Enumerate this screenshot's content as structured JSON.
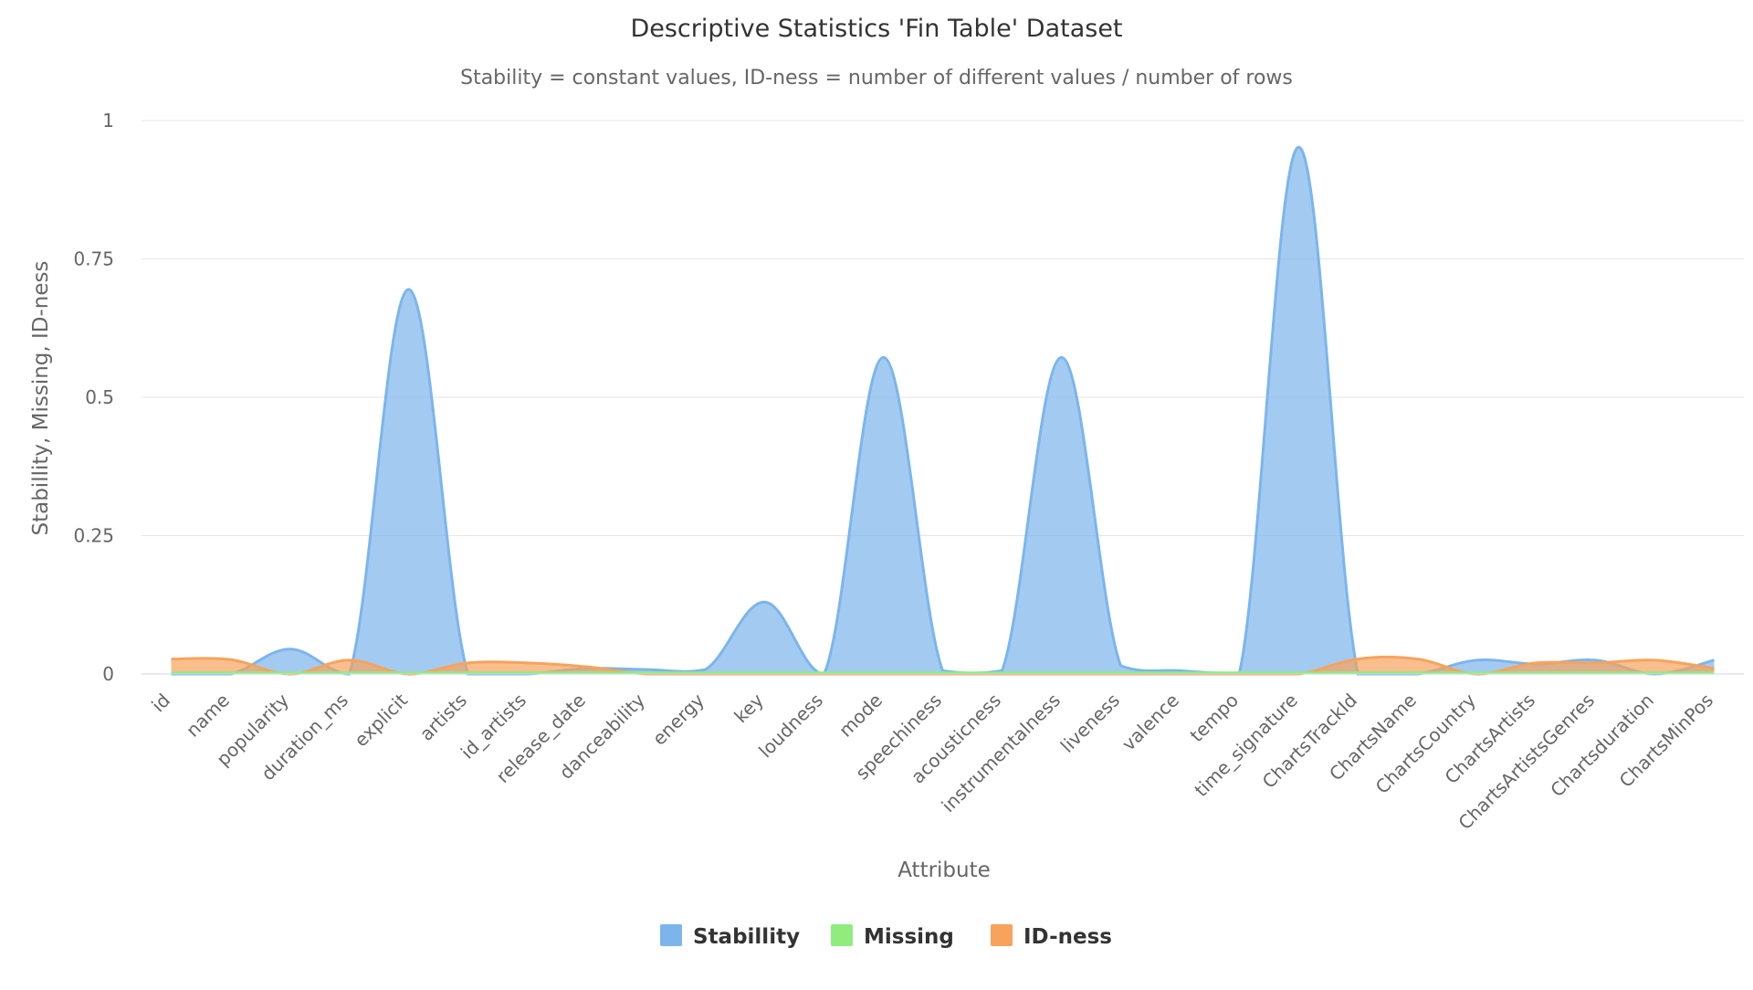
{
  "chart_data": {
    "type": "area",
    "title": "Descriptive Statistics 'Fin Table' Dataset",
    "subtitle": "Stability = constant values, ID-ness = number of different values / number of rows",
    "xlabel": "Attribute",
    "ylabel": "Stabillity, Missing, ID-ness",
    "ylim": [
      0,
      1
    ],
    "yticks": [
      0,
      0.25,
      0.5,
      0.75,
      1
    ],
    "ytick_labels": [
      "0",
      "0.25",
      "0.5",
      "0.75",
      "1"
    ],
    "grid": true,
    "legend": "bottom-center",
    "categories": [
      "id",
      "name",
      "popularity",
      "duration_ms",
      "explicit",
      "artists",
      "id_artists",
      "release_date",
      "danceability",
      "energy",
      "key",
      "loudness",
      "mode",
      "speechiness",
      "acousticness",
      "instrumentalness",
      "liveness",
      "valence",
      "tempo",
      "time_signature",
      "ChartsTrackId",
      "ChartsName",
      "ChartsCountry",
      "ChartsArtists",
      "ChartsArtistsGenres",
      "Chartsduration",
      "ChartsMinPos"
    ],
    "series": [
      {
        "name": "Stabillity",
        "color": "#7cb5ec",
        "values": [
          0.0,
          0.0,
          0.045,
          0.0,
          0.695,
          0.0,
          0.0,
          0.01,
          0.008,
          0.008,
          0.13,
          0.0,
          0.572,
          0.006,
          0.006,
          0.572,
          0.015,
          0.006,
          0.002,
          0.952,
          0.0,
          0.0,
          0.025,
          0.018,
          0.025,
          0.0,
          0.025
        ]
      },
      {
        "name": "Missing",
        "color": "#90ed7d",
        "values": [
          0.002,
          0.002,
          0.002,
          0.002,
          0.002,
          0.002,
          0.002,
          0.002,
          0.002,
          0.002,
          0.002,
          0.002,
          0.002,
          0.002,
          0.002,
          0.002,
          0.002,
          0.002,
          0.002,
          0.002,
          0.002,
          0.002,
          0.002,
          0.002,
          0.002,
          0.002,
          0.002
        ]
      },
      {
        "name": "ID-ness",
        "color": "#f7a35c",
        "values": [
          0.027,
          0.026,
          0.0,
          0.025,
          0.0,
          0.02,
          0.02,
          0.013,
          0.0,
          0.0,
          0.0,
          0.0,
          0.0,
          0.0,
          0.0,
          0.0,
          0.0,
          0.0,
          0.0,
          0.0,
          0.027,
          0.027,
          0.0,
          0.02,
          0.02,
          0.025,
          0.01
        ]
      }
    ]
  }
}
